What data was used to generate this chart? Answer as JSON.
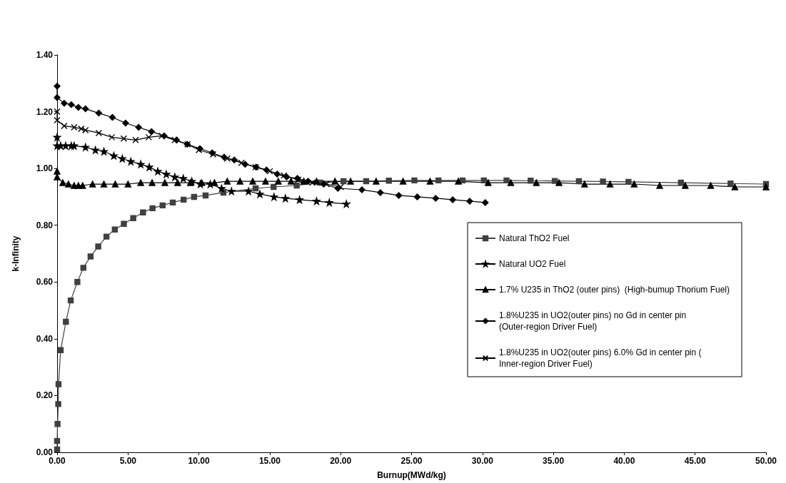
{
  "chart_data": {
    "type": "line",
    "xlabel": "Burnup(MWd/kg)",
    "ylabel": "k-Infinity",
    "legend": "right",
    "grid": false,
    "line_style": "solid",
    "xlim": [
      0,
      50
    ],
    "xticks": [
      {
        "value": 0,
        "label": "0.00"
      },
      {
        "value": 5,
        "label": "5.00"
      },
      {
        "value": 10,
        "label": "10.00"
      },
      {
        "value": 15,
        "label": "15.00"
      },
      {
        "value": 20,
        "label": "20.00"
      },
      {
        "value": 25,
        "label": "25.00"
      },
      {
        "value": 30,
        "label": "30.00"
      },
      {
        "value": 35,
        "label": "35.00"
      },
      {
        "value": 40,
        "label": "40.00"
      },
      {
        "value": 45,
        "label": "45.00"
      },
      {
        "value": 50,
        "label": "50.00"
      }
    ],
    "ylim": [
      0,
      1.4
    ],
    "yticks": [
      {
        "value": 0,
        "label": "0.00"
      },
      {
        "value": 0.2,
        "label": "0.20"
      },
      {
        "value": 0.4,
        "label": "0.40"
      },
      {
        "value": 0.6,
        "label": "0.60"
      },
      {
        "value": 0.8,
        "label": "0.80"
      },
      {
        "value": 1,
        "label": "1.00"
      },
      {
        "value": 1.2,
        "label": "1.20"
      },
      {
        "value": 1.4,
        "label": "1.40"
      }
    ],
    "series": [
      {
        "name": "Natural ThO2 Fuel",
        "color": "#404040",
        "marker": "square",
        "x": [
          0,
          0,
          0.03,
          0.08,
          0.1,
          0.25,
          0.62,
          0.96,
          1.43,
          1.85,
          2.36,
          2.9,
          3.48,
          4.07,
          4.71,
          5.37,
          6.06,
          6.73,
          7.44,
          8.16,
          8.92,
          9.66,
          10.47,
          11.73,
          14.0,
          15.27,
          16.9,
          18.55,
          20.2,
          21.8,
          23.4,
          25.2,
          26.9,
          28.6,
          30.1,
          31.7,
          33.4,
          35.1,
          36.8,
          38.5,
          40.3,
          44.0,
          47.5,
          50
        ],
        "values": [
          0.01,
          0.04,
          0.1,
          0.17,
          0.24,
          0.36,
          0.46,
          0.535,
          0.6,
          0.65,
          0.69,
          0.725,
          0.76,
          0.785,
          0.805,
          0.825,
          0.845,
          0.86,
          0.87,
          0.88,
          0.89,
          0.9,
          0.905,
          0.915,
          0.93,
          0.935,
          0.94,
          0.95,
          0.955,
          0.955,
          0.957,
          0.958,
          0.958,
          0.958,
          0.958,
          0.958,
          0.957,
          0.956,
          0.955,
          0.954,
          0.953,
          0.95,
          0.947,
          0.945
        ]
      },
      {
        "name": "Natural UO2 Fuel",
        "color": "#000000",
        "marker": "star",
        "x": [
          0,
          0,
          0.25,
          0.6,
          1.0,
          1.2,
          2.0,
          2.7,
          3.3,
          4.0,
          4.6,
          5.2,
          5.9,
          6.5,
          7.1,
          7.7,
          8.3,
          8.9,
          9.5,
          10.1,
          10.8,
          11.6,
          12.3,
          13.5,
          14.3,
          15.3,
          16.1,
          17.1,
          18.3,
          19.2,
          20.4
        ],
        "values": [
          1.11,
          1.08,
          1.08,
          1.08,
          1.08,
          1.08,
          1.075,
          1.065,
          1.06,
          1.045,
          1.035,
          1.025,
          1.015,
          1.005,
          0.99,
          0.98,
          0.97,
          0.965,
          0.955,
          0.945,
          0.945,
          0.93,
          0.92,
          0.92,
          0.91,
          0.9,
          0.895,
          0.89,
          0.885,
          0.88,
          0.875
        ]
      },
      {
        "name": "1.7% U235 in ThO2 (outer pins)  (High-bumup Thorium Fuel)",
        "color": "#000000",
        "marker": "triangle",
        "x": [
          0,
          0,
          0.4,
          0.8,
          1.2,
          1.5,
          1.8,
          2.5,
          3.3,
          4.1,
          5.0,
          5.9,
          6.7,
          7.6,
          8.5,
          9.4,
          10.2,
          11.1,
          12.0,
          12.9,
          13.8,
          14.7,
          15.6,
          16.5,
          17.4,
          18.3,
          19.6,
          20.7,
          22.5,
          24.4,
          26.3,
          28.3,
          30.4,
          32.0,
          33.8,
          35.4,
          37.2,
          39.0,
          40.7,
          42.5,
          44.3,
          46.1,
          47.8,
          50
        ],
        "values": [
          0.99,
          0.97,
          0.95,
          0.945,
          0.94,
          0.94,
          0.94,
          0.945,
          0.945,
          0.945,
          0.945,
          0.95,
          0.95,
          0.95,
          0.95,
          0.95,
          0.95,
          0.95,
          0.955,
          0.955,
          0.955,
          0.955,
          0.955,
          0.955,
          0.955,
          0.955,
          0.955,
          0.955,
          0.955,
          0.955,
          0.955,
          0.955,
          0.95,
          0.95,
          0.95,
          0.95,
          0.945,
          0.945,
          0.945,
          0.94,
          0.94,
          0.94,
          0.935,
          0.935
        ]
      },
      {
        "name": "1.8%U235 in UO2(outer pins) no Gd in center pin  (Outer-region Driver Fuel)",
        "color": "#000000",
        "marker": "diamond",
        "x": [
          0,
          0,
          0.5,
          1.0,
          1.5,
          2.0,
          2.94,
          3.9,
          4.83,
          5.75,
          6.66,
          7.55,
          8.42,
          9.18,
          10.07,
          10.94,
          11.78,
          12.5,
          13.26,
          14.04,
          14.77,
          15.52,
          16.19,
          16.95,
          17.7,
          18.8,
          19.8,
          21.5,
          22.8,
          24.1,
          25.4,
          26.7,
          27.9,
          29.1,
          30.2
        ],
        "values": [
          1.29,
          1.25,
          1.23,
          1.225,
          1.215,
          1.21,
          1.195,
          1.18,
          1.16,
          1.145,
          1.13,
          1.115,
          1.1,
          1.085,
          1.07,
          1.055,
          1.04,
          1.03,
          1.015,
          1.005,
          0.995,
          0.98,
          0.97,
          0.965,
          0.955,
          0.945,
          0.93,
          0.925,
          0.915,
          0.905,
          0.9,
          0.895,
          0.89,
          0.885,
          0.88
        ]
      },
      {
        "name": "1.8%U235 in UO2(outer pins) 6.0% Gd in center pin ( Inner-region Driver Fuel)",
        "color": "#000000",
        "marker": "cross",
        "x": [
          0,
          0,
          0.5,
          1.2,
          1.7,
          2.0,
          2.94,
          3.86,
          4.7,
          5.54,
          6.46,
          7.38,
          8.3,
          9.2,
          10.0,
          11.0,
          12.0,
          13.0,
          14.0,
          15.0,
          16.0,
          17.0,
          18.0,
          19.0,
          20.0
        ],
        "values": [
          1.2,
          1.17,
          1.15,
          1.145,
          1.14,
          1.135,
          1.125,
          1.11,
          1.105,
          1.1,
          1.11,
          1.115,
          1.1,
          1.085,
          1.065,
          1.05,
          1.035,
          1.02,
          1.005,
          0.99,
          0.975,
          0.96,
          0.95,
          0.945,
          0.935
        ]
      }
    ]
  }
}
